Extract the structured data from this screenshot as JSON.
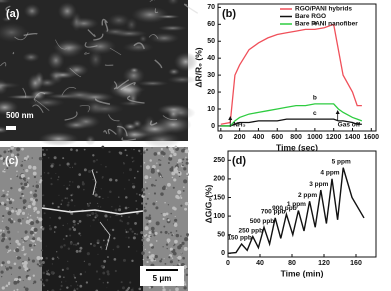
{
  "images": [
    {
      "label": "(a)",
      "scale_bar": "500 nm"
    },
    {
      "label": "(c)",
      "scale_bar": "5 μm"
    }
  ],
  "chart_data": [
    {
      "type": "line",
      "label": "(b)",
      "x_label": "Time (sec)",
      "y_label": "ΔR/R₀ (%)",
      "x": [
        0,
        100,
        150,
        200,
        300,
        400,
        500,
        600,
        700,
        800,
        900,
        1000,
        1100,
        1200,
        1250,
        1300,
        1400,
        1450,
        1500
      ],
      "series": [
        {
          "name": "RGO/PANI hybrids",
          "color": "#f0505a",
          "values": [
            1,
            2,
            30,
            36,
            45,
            49,
            52,
            54,
            55,
            56,
            57,
            57,
            58,
            60,
            45,
            30,
            20,
            12,
            12
          ]
        },
        {
          "name": "Bare RGO",
          "color": "#111111",
          "values": [
            0,
            0,
            1,
            2,
            2,
            3,
            3,
            3,
            4,
            4,
            4,
            4,
            4,
            4,
            3,
            3,
            2,
            1,
            1
          ]
        },
        {
          "name": "Bare PANI nanofiber",
          "color": "#2ecc40",
          "values": [
            0,
            0,
            3,
            5,
            7,
            8,
            9,
            10,
            11,
            12,
            12,
            13,
            13,
            13,
            10,
            8,
            5,
            4,
            3
          ]
        }
      ],
      "series_labels": [
        "a",
        "c",
        "b"
      ],
      "annotations": [
        "NH₃",
        "Gas off"
      ],
      "xlim": [
        -30,
        1650
      ],
      "ylim": [
        -3,
        72
      ],
      "xticks": [
        0,
        200,
        400,
        600,
        800,
        1000,
        1200,
        1400,
        1600
      ],
      "yticks": [
        0,
        10,
        20,
        30,
        40,
        50,
        60,
        70
      ],
      "legend": "upper right",
      "grid": false
    },
    {
      "type": "line",
      "label": "(d)",
      "x_label": "Time (min)",
      "y_label": "ΔG/G₀(%)",
      "x": [
        0,
        10,
        17,
        24,
        31,
        38,
        45,
        52,
        59,
        66,
        73,
        81,
        88,
        95,
        102,
        109,
        116,
        123,
        130,
        137,
        144,
        155,
        170
      ],
      "series": [
        {
          "color": "#111111",
          "values": [
            0,
            2,
            25,
            8,
            45,
            15,
            70,
            25,
            95,
            40,
            105,
            50,
            115,
            60,
            140,
            70,
            170,
            80,
            200,
            90,
            230,
            150,
            95
          ]
        }
      ],
      "annotations": [
        "150 ppb",
        "250 ppb",
        "500 ppb",
        "700 ppb",
        "900 ppb",
        "1 ppm",
        "2 ppm",
        "3 ppm",
        "4 ppm",
        "5 ppm"
      ],
      "xlim": [
        0,
        185
      ],
      "ylim": [
        -10,
        275
      ],
      "xticks": [
        0,
        40,
        80,
        120,
        160
      ],
      "yticks": [
        0,
        50,
        100,
        150,
        200,
        250
      ],
      "grid": false
    }
  ]
}
